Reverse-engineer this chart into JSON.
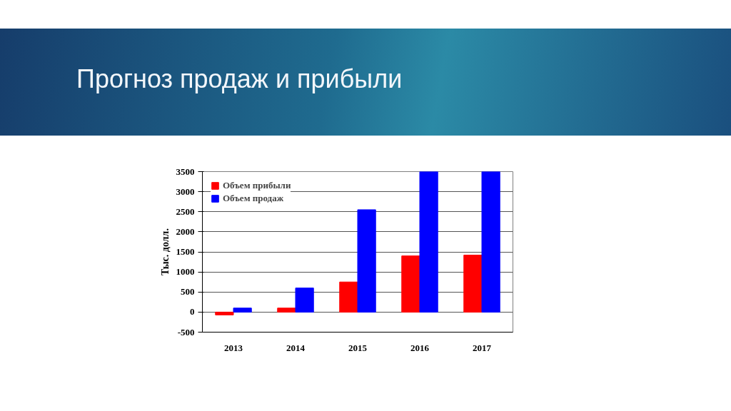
{
  "chart_data": {
    "type": "bar",
    "title": "Прогноз продаж и прибыли",
    "ylabel": "Тыс. долл.",
    "categories": [
      "2013",
      "2014",
      "2015",
      "2016",
      "2017"
    ],
    "series": [
      {
        "name": "Объем прибыли",
        "color": "#ff0000",
        "values": [
          -70,
          100,
          750,
          1400,
          1420
        ]
      },
      {
        "name": "Объем продаж",
        "color": "#0000ff",
        "values": [
          100,
          600,
          2550,
          3500,
          3500
        ]
      }
    ],
    "ylim": [
      -500,
      3500
    ],
    "yticks": [
      -500,
      0,
      500,
      1000,
      1500,
      2000,
      2500,
      3000,
      3500
    ],
    "grid": "y",
    "legend": "top left"
  }
}
